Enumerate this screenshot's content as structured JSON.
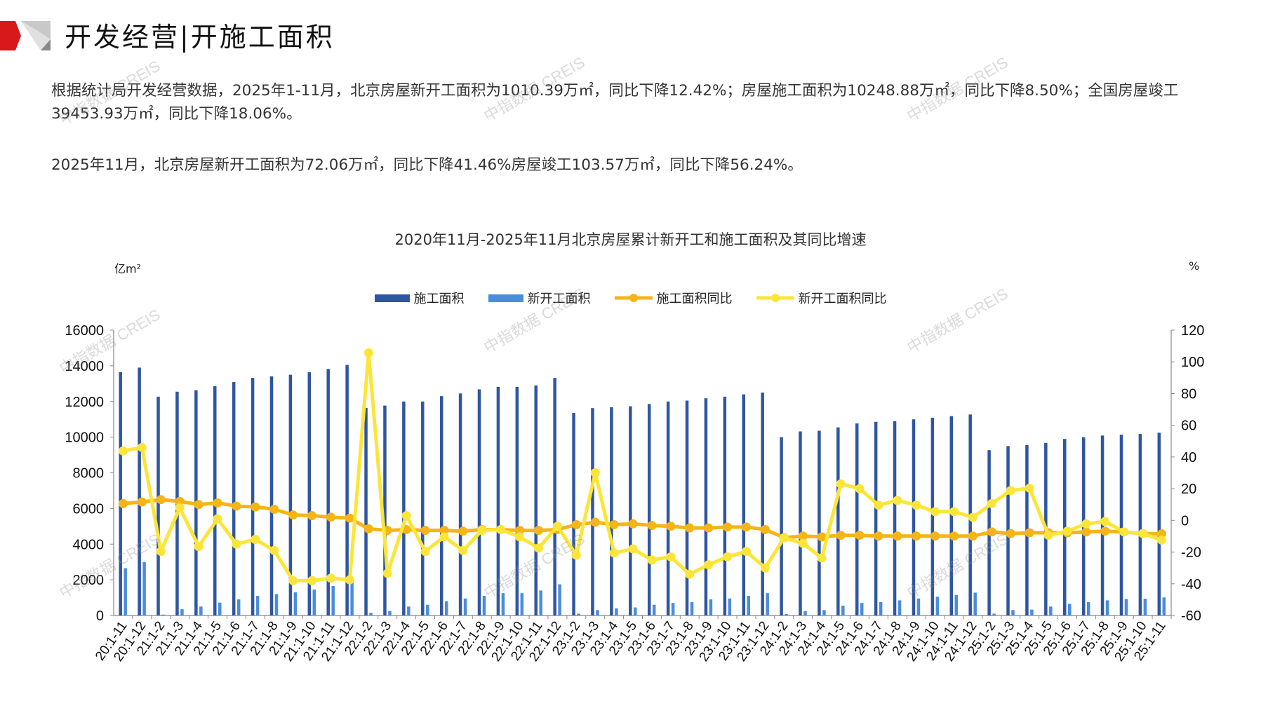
{
  "header": {
    "title": "开发经营|开施工面积"
  },
  "paragraphs": [
    "根据统计局开发经营数据，2025年1-11月，北京房屋新开工面积为1010.39万㎡，同比下降12.42%；房屋施工面积为10248.88万㎡，同比下降8.50%；全国房屋竣工39453.93万㎡，同比下降18.06%。",
    "2025年11月，北京房屋新开工面积为72.06万㎡，同比下降41.46%房屋竣工103.57万㎡，同比下降56.24%。"
  ],
  "watermark": "中指数据 CREIS",
  "colors": {
    "construction": "#2f56a0",
    "new_start": "#4a8ddb",
    "construction_yoy": "#f5b417",
    "new_start_yoy": "#fbe53a"
  },
  "chart_data": {
    "type": "bar+line",
    "title": "2020年11月-2025年11月北京房屋累计新开工和施工面积及其同比增速",
    "ylabel_left": "亿m²",
    "ylabel_right": "%",
    "ylim_left": [
      0,
      16000
    ],
    "yticks_left": [
      0,
      2000,
      4000,
      6000,
      8000,
      10000,
      12000,
      14000,
      16000
    ],
    "ylim_right": [
      -60,
      120
    ],
    "yticks_right": [
      -60,
      -40,
      -20,
      0,
      20,
      40,
      60,
      80,
      100,
      120
    ],
    "legend_position": "top-center",
    "categories": [
      "20:1-11",
      "20:1-12",
      "21:1-2",
      "21:1-3",
      "21:1-4",
      "21:1-5",
      "21:1-6",
      "21:1-7",
      "21:1-8",
      "21:1-9",
      "21:1-10",
      "21:1-11",
      "21:1-12",
      "22:1-2",
      "22:1-3",
      "22:1-4",
      "22:1-5",
      "22:1-6",
      "22:1-7",
      "22:1-8",
      "22:1-9",
      "22:1-10",
      "22:1-11",
      "22:1-12",
      "23:1-2",
      "23:1-3",
      "23:1-4",
      "23:1-5",
      "23:1-6",
      "23:1-7",
      "23:1-8",
      "23:1-9",
      "23:1-10",
      "23:1-11",
      "23:1-12",
      "24:1-2",
      "24:1-3",
      "24:1-4",
      "24:1-5",
      "24:1-6",
      "24:1-7",
      "24:1-8",
      "24:1-9",
      "24:1-10",
      "24:1-11",
      "24:1-12",
      "25:1-2",
      "25:1-3",
      "25:1-4",
      "25:1-5",
      "25:1-6",
      "25:1-7",
      "25:1-8",
      "25:1-9",
      "25:1-10",
      "25:1-11"
    ],
    "series": [
      {
        "name": "施工面积",
        "type": "bar",
        "axis": "left",
        "values": [
          13650,
          13900,
          12270,
          12550,
          12630,
          12860,
          13090,
          13320,
          13410,
          13500,
          13640,
          13820,
          14050,
          11640,
          11770,
          12000,
          12000,
          12300,
          12450,
          12680,
          12820,
          12820,
          12900,
          13320,
          11360,
          11630,
          11680,
          11730,
          11860,
          12000,
          12050,
          12180,
          12270,
          12400,
          12500,
          10000,
          10320,
          10360,
          10550,
          10770,
          10860,
          10900,
          11000,
          11090,
          11180,
          11270,
          9270,
          9500,
          9550,
          9680,
          9900,
          10000,
          10090,
          10140,
          10180,
          10249
        ]
      },
      {
        "name": "新开工面积",
        "type": "bar",
        "axis": "left",
        "values": [
          2650,
          3000,
          50,
          350,
          500,
          720,
          900,
          1100,
          1200,
          1300,
          1450,
          1650,
          2100,
          150,
          250,
          500,
          600,
          800,
          950,
          1100,
          1250,
          1250,
          1400,
          1750,
          100,
          300,
          400,
          450,
          600,
          700,
          750,
          900,
          950,
          1100,
          1250,
          80,
          250,
          300,
          550,
          700,
          750,
          850,
          950,
          1050,
          1150,
          1280,
          100,
          300,
          330,
          500,
          650,
          750,
          850,
          920,
          940,
          1010
        ]
      },
      {
        "name": "施工面积同比",
        "type": "line",
        "axis": "right",
        "values": [
          10.6,
          11.6,
          13.1,
          12,
          10,
          11,
          9,
          8.5,
          7,
          3.4,
          3,
          2,
          1.4,
          -5.3,
          -6.3,
          -5.8,
          -6.3,
          -6.3,
          -6.8,
          -5.8,
          -5.8,
          -6.3,
          -6.3,
          -5.8,
          -2.7,
          -1.2,
          -2.7,
          -2.2,
          -3.2,
          -3.7,
          -4.8,
          -4.8,
          -4.2,
          -4.2,
          -5.8,
          -10.9,
          -9.9,
          -10.4,
          -9.4,
          -9.4,
          -9.9,
          -9.9,
          -9.9,
          -9.9,
          -9.9,
          -9.9,
          -7.3,
          -8.3,
          -7.8,
          -7.8,
          -7.8,
          -7.3,
          -6.8,
          -7.3,
          -8.3,
          -8.5
        ]
      },
      {
        "name": "新开工面积同比",
        "type": "line",
        "axis": "right",
        "values": [
          43.8,
          46,
          -19.6,
          8,
          -16.5,
          1,
          -15,
          -12,
          -19,
          -38,
          -38,
          -36.5,
          -37.5,
          105.7,
          -33.4,
          3,
          -19.6,
          -10.4,
          -19,
          -6.3,
          -5.8,
          -10.4,
          -17.5,
          -3.7,
          -22,
          30,
          -20.6,
          -18,
          -25,
          -23,
          -34,
          -28,
          -23,
          -19.6,
          -30,
          -11,
          -14.5,
          -23.7,
          23,
          20,
          9.6,
          12.6,
          9.6,
          5.5,
          5.5,
          1.9,
          10.6,
          18.8,
          20.3,
          -9.4,
          -6.8,
          -2.2,
          -0.7,
          -7.3,
          -8.3,
          -12.42
        ]
      }
    ]
  }
}
